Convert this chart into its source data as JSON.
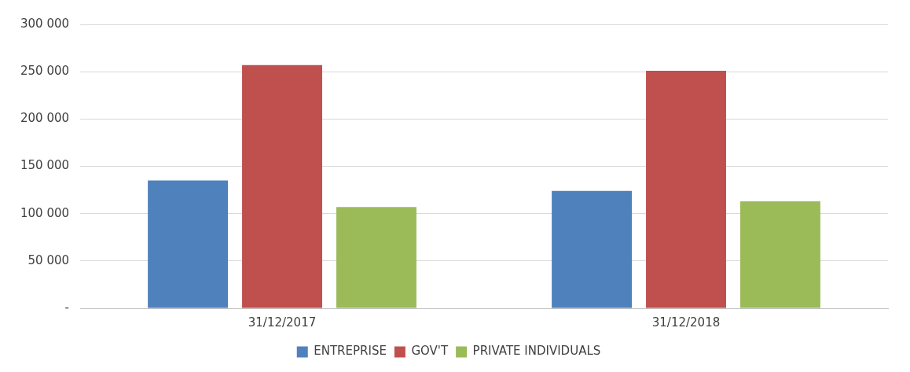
{
  "chart_data": {
    "type": "bar",
    "categories": [
      "31/12/2017",
      "31/12/2018"
    ],
    "series": [
      {
        "name": "ENTREPRISE",
        "color": "#4f81bd",
        "values": [
          135000,
          124000
        ]
      },
      {
        "name": "GOV'T",
        "color": "#c0504d",
        "values": [
          257000,
          251000
        ]
      },
      {
        "name": "PRIVATE INDIVIDUALS",
        "color": "#9bbb59",
        "values": [
          107000,
          113000
        ]
      }
    ],
    "ylim": [
      0,
      300000
    ],
    "yticks": [
      {
        "value": 0,
        "label": "-"
      },
      {
        "value": 50000,
        "label": "50 000"
      },
      {
        "value": 100000,
        "label": "100 000"
      },
      {
        "value": 150000,
        "label": "150 000"
      },
      {
        "value": 200000,
        "label": "200 000"
      },
      {
        "value": 250000,
        "label": "250 000"
      },
      {
        "value": 300000,
        "label": "300 000"
      }
    ],
    "grid": "y",
    "legend": "bottom"
  }
}
